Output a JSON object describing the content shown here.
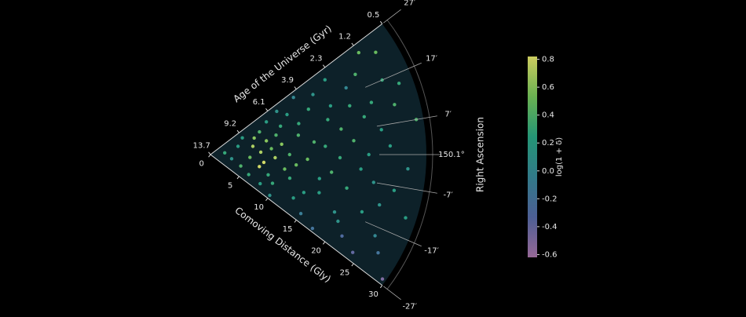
{
  "chart_data": {
    "type": "polar-wedge-scatter",
    "radial_axis_label": "Comoving Distance (Gly)",
    "age_axis_label": "Age of the Universe (Gyr)",
    "angular_axis_label": "Right Ascension",
    "colorbar_label": "log(1 + δ)",
    "rlim": [
      0,
      30
    ],
    "rticks": [
      0,
      5,
      10,
      15,
      20,
      25,
      30
    ],
    "age_ticks": [
      {
        "value": 0,
        "label": "13.7"
      },
      {
        "value": 5,
        "label": "9.2"
      },
      {
        "value": 10,
        "label": "6.1"
      },
      {
        "value": 15,
        "label": "3.9"
      },
      {
        "value": 20,
        "label": "2.3"
      },
      {
        "value": 25,
        "label": "1.2"
      },
      {
        "value": 30,
        "label": "0.5"
      }
    ],
    "thetalim": [
      -27,
      27
    ],
    "thetaticks": [
      {
        "value": 27,
        "label": "27′"
      },
      {
        "value": 17,
        "label": "17′"
      },
      {
        "value": 7,
        "label": "7′"
      },
      {
        "value": 0,
        "label": "150.1°"
      },
      {
        "value": -7,
        "label": "-7′"
      },
      {
        "value": -17,
        "label": "-17′"
      },
      {
        "value": -27,
        "label": "-27′"
      }
    ],
    "clim": [
      -0.62,
      0.82
    ],
    "cticks": [
      0.8,
      0.6,
      0.4,
      0.2,
      {
        "value": 0,
        "label": "0.0"
      },
      -0.2,
      -0.4,
      -0.6
    ],
    "colormap": [
      "#b07ab0",
      "#5a6fae",
      "#3a8fa0",
      "#2bb08a",
      "#7cd060",
      "#f0f070"
    ],
    "r": [
      2,
      3,
      4,
      4.5,
      5,
      5.5,
      6,
      6,
      6.5,
      7,
      7,
      7.5,
      7.5,
      8,
      8,
      8.5,
      8.5,
      9,
      9,
      9.5,
      9.5,
      10,
      10,
      10.5,
      10.5,
      11,
      11,
      11.5,
      12,
      12,
      12.5,
      13,
      13,
      13.5,
      14,
      14,
      14.5,
      15,
      15,
      15.5,
      16,
      16,
      16.5,
      17,
      17,
      17.5,
      18,
      18,
      18.5,
      19,
      19,
      19.5,
      20,
      20,
      20.5,
      21,
      21,
      21.5,
      22,
      22,
      22.5,
      23,
      23,
      23.5,
      24,
      24,
      24.5,
      25,
      25,
      25.5,
      26,
      26,
      26.5,
      27,
      27,
      27.5,
      28,
      28.5,
      29,
      29.5
    ],
    "theta": [
      5,
      -8,
      12,
      -15,
      20,
      -3,
      8,
      -20,
      15,
      -10,
      2,
      18,
      -6,
      -22,
      10,
      4,
      -14,
      22,
      -2,
      12,
      -18,
      6,
      -25,
      16,
      -8,
      24,
      0,
      -12,
      20,
      -5,
      9,
      -20,
      14,
      -2,
      25,
      -16,
      5,
      -24,
      18,
      -9,
      3,
      -14,
      22,
      -6,
      12,
      -26,
      16,
      -1,
      8,
      -18,
      24,
      -10,
      4,
      -20,
      14,
      -4,
      19,
      -23,
      10,
      0,
      -15,
      21,
      -7,
      13,
      -25,
      6,
      -12,
      25,
      2,
      -19,
      17,
      -8,
      11,
      -22,
      23,
      -3,
      15,
      -13,
      7,
      -26
    ],
    "values": [
      0.3,
      0.1,
      0.2,
      0.4,
      0.2,
      0.5,
      0.7,
      0.3,
      0.6,
      0.8,
      0.7,
      0.4,
      0.8,
      0.2,
      0.6,
      0.5,
      0.3,
      0.2,
      0.7,
      0.4,
      0.3,
      0.6,
      0.1,
      0.3,
      0.5,
      0.1,
      0.4,
      0.3,
      0.2,
      0.5,
      0.4,
      0.2,
      0.3,
      0.5,
      0.0,
      0.2,
      0.4,
      -0.1,
      0.3,
      0.2,
      0.3,
      0.2,
      0.1,
      0.4,
      0.3,
      -0.2,
      0.2,
      0.3,
      0.4,
      0.1,
      0.2,
      0.3,
      0.4,
      0.1,
      0.3,
      0.2,
      0.0,
      -0.3,
      0.3,
      0.2,
      0.2,
      0.4,
      0.1,
      0.3,
      -0.4,
      0.2,
      0.1,
      0.5,
      0.2,
      0.0,
      0.3,
      0.2,
      0.4,
      -0.2,
      0.5,
      0.1,
      0.3,
      0.2,
      0.4,
      -0.5
    ]
  }
}
